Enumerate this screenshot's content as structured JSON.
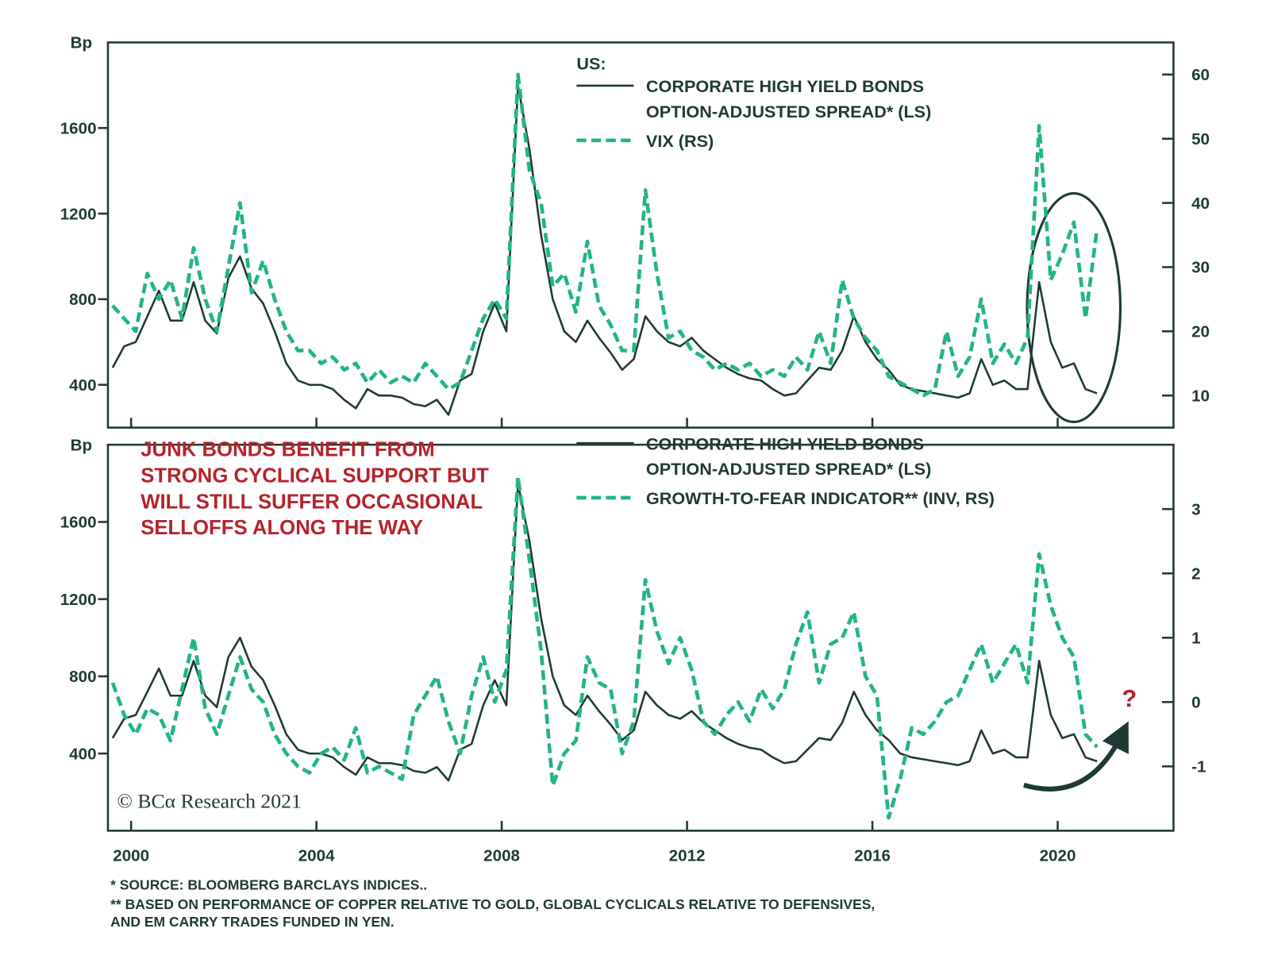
{
  "chart_data": [
    {
      "type": "line",
      "y_label": "Bp",
      "legend_title": "US:",
      "xlim": [
        1999.5,
        2022.5
      ],
      "ylim": [
        200,
        2000
      ],
      "yticks": [
        400,
        800,
        1200,
        1600
      ],
      "y2lim": [
        5,
        65
      ],
      "y2ticks": [
        10,
        20,
        30,
        40,
        50,
        60
      ],
      "x": [
        1999.6,
        1999.85,
        2000.1,
        2000.35,
        2000.6,
        2000.85,
        2001.1,
        2001.35,
        2001.6,
        2001.85,
        2002.1,
        2002.35,
        2002.6,
        2002.85,
        2003.1,
        2003.35,
        2003.6,
        2003.85,
        2004.1,
        2004.35,
        2004.6,
        2004.85,
        2005.1,
        2005.35,
        2005.6,
        2005.85,
        2006.1,
        2006.35,
        2006.6,
        2006.85,
        2007.1,
        2007.35,
        2007.6,
        2007.85,
        2008.1,
        2008.35,
        2008.6,
        2008.85,
        2009.1,
        2009.35,
        2009.6,
        2009.85,
        2010.1,
        2010.35,
        2010.6,
        2010.85,
        2011.1,
        2011.35,
        2011.6,
        2011.85,
        2012.1,
        2012.35,
        2012.6,
        2012.85,
        2013.1,
        2013.35,
        2013.6,
        2013.85,
        2014.1,
        2014.35,
        2014.6,
        2014.85,
        2015.1,
        2015.35,
        2015.6,
        2015.85,
        2016.1,
        2016.35,
        2016.6,
        2016.85,
        2017.1,
        2017.35,
        2017.6,
        2017.85,
        2018.1,
        2018.35,
        2018.6,
        2018.85,
        2019.1,
        2019.35,
        2019.6,
        2019.85,
        2020.1,
        2020.35,
        2020.6,
        2020.85
      ],
      "series": [
        {
          "name": "CORPORATE HIGH YIELD BONDS\nOPTION-ADJUSTED SPREAD* (LS)",
          "color": "#1f3a35",
          "dashed": false,
          "values": [
            480,
            580,
            600,
            720,
            840,
            700,
            700,
            880,
            700,
            640,
            900,
            1000,
            850,
            780,
            650,
            500,
            420,
            400,
            400,
            380,
            330,
            290,
            380,
            350,
            350,
            340,
            310,
            300,
            330,
            260,
            420,
            450,
            650,
            780,
            650,
            1800,
            1500,
            1100,
            800,
            650,
            600,
            700,
            620,
            550,
            470,
            520,
            720,
            650,
            600,
            580,
            620,
            560,
            520,
            480,
            450,
            430,
            420,
            380,
            350,
            360,
            420,
            480,
            470,
            560,
            720,
            600,
            520,
            470,
            400,
            380,
            370,
            360,
            350,
            340,
            360,
            520,
            400,
            420,
            380,
            380,
            880,
            600,
            480,
            500,
            380,
            360
          ]
        },
        {
          "name": "VIX (RS)",
          "color": "#22b488",
          "dashed": true,
          "axis": "y2",
          "values": [
            24,
            22,
            20,
            29,
            25,
            28,
            22,
            33,
            25,
            20,
            30,
            40,
            26,
            31,
            25,
            20,
            17,
            17,
            15,
            16,
            14,
            15,
            12,
            14,
            12,
            13,
            12,
            15,
            13,
            11,
            12,
            17,
            22,
            25,
            22,
            60,
            45,
            40,
            27,
            29,
            23,
            34,
            24,
            21,
            17,
            17,
            42,
            29,
            19,
            20,
            17,
            16,
            14,
            15,
            14,
            15,
            13,
            14,
            13,
            16,
            14,
            20,
            15,
            28,
            22,
            19,
            17,
            13,
            12,
            11,
            10,
            11,
            20,
            13,
            16,
            25,
            15,
            18,
            15,
            19,
            52,
            28,
            32,
            37,
            22,
            36
          ]
        }
      ]
    },
    {
      "type": "line",
      "y_label": "Bp",
      "annotations": [
        "JUNK BONDS BENEFIT FROM\nSTRONG CYCLICAL SUPPORT BUT\nWILL STILL SUFFER OCCASIONAL\nSELLOFFS ALONG THE WAY",
        "?"
      ],
      "xlim": [
        1999.5,
        2022.5
      ],
      "xticks": [
        2000,
        2004,
        2008,
        2012,
        2016,
        2020
      ],
      "ylim": [
        0,
        2000
      ],
      "yticks": [
        400,
        800,
        1200,
        1600
      ],
      "y2lim": [
        -2,
        4
      ],
      "y2ticks": [
        -1,
        0,
        1,
        2,
        3
      ],
      "x": [
        1999.6,
        1999.85,
        2000.1,
        2000.35,
        2000.6,
        2000.85,
        2001.1,
        2001.35,
        2001.6,
        2001.85,
        2002.1,
        2002.35,
        2002.6,
        2002.85,
        2003.1,
        2003.35,
        2003.6,
        2003.85,
        2004.1,
        2004.35,
        2004.6,
        2004.85,
        2005.1,
        2005.35,
        2005.6,
        2005.85,
        2006.1,
        2006.35,
        2006.6,
        2006.85,
        2007.1,
        2007.35,
        2007.6,
        2007.85,
        2008.1,
        2008.35,
        2008.6,
        2008.85,
        2009.1,
        2009.35,
        2009.6,
        2009.85,
        2010.1,
        2010.35,
        2010.6,
        2010.85,
        2011.1,
        2011.35,
        2011.6,
        2011.85,
        2012.1,
        2012.35,
        2012.6,
        2012.85,
        2013.1,
        2013.35,
        2013.6,
        2013.85,
        2014.1,
        2014.35,
        2014.6,
        2014.85,
        2015.1,
        2015.35,
        2015.6,
        2015.85,
        2016.1,
        2016.35,
        2016.6,
        2016.85,
        2017.1,
        2017.35,
        2017.6,
        2017.85,
        2018.1,
        2018.35,
        2018.6,
        2018.85,
        2019.1,
        2019.35,
        2019.6,
        2019.85,
        2020.1,
        2020.35,
        2020.6,
        2020.85
      ],
      "series": [
        {
          "name": "CORPORATE HIGH YIELD BONDS\nOPTION-ADJUSTED SPREAD* (LS)",
          "color": "#1f3a35",
          "dashed": false,
          "values": [
            480,
            580,
            600,
            720,
            840,
            700,
            700,
            880,
            700,
            640,
            900,
            1000,
            850,
            780,
            650,
            500,
            420,
            400,
            400,
            380,
            330,
            290,
            380,
            350,
            350,
            340,
            310,
            300,
            330,
            260,
            420,
            450,
            650,
            780,
            650,
            1800,
            1500,
            1100,
            800,
            650,
            600,
            700,
            620,
            550,
            470,
            520,
            720,
            650,
            600,
            580,
            620,
            560,
            520,
            480,
            450,
            430,
            420,
            380,
            350,
            360,
            420,
            480,
            470,
            560,
            720,
            600,
            520,
            470,
            400,
            380,
            370,
            360,
            350,
            340,
            360,
            520,
            400,
            420,
            380,
            380,
            880,
            600,
            480,
            500,
            380,
            360
          ]
        },
        {
          "name": "GROWTH-TO-FEAR INDICATOR** (INV, RS)",
          "color": "#22b488",
          "dashed": true,
          "axis": "y2",
          "values": [
            0.3,
            -0.2,
            -0.5,
            -0.1,
            -0.2,
            -0.6,
            0.2,
            1.0,
            -0.1,
            -0.5,
            0.1,
            0.7,
            0.2,
            0,
            -0.5,
            -0.8,
            -1.0,
            -1.1,
            -0.8,
            -0.7,
            -0.9,
            -0.4,
            -1.1,
            -1.0,
            -1.1,
            -1.2,
            -0.2,
            0.1,
            0.4,
            -0.3,
            -0.8,
            0.1,
            0.7,
            0,
            0.5,
            3.5,
            2.2,
            0.8,
            -1.3,
            -0.8,
            -0.6,
            0.7,
            0.3,
            0.2,
            -0.8,
            -0.3,
            1.9,
            1.1,
            0.6,
            1.0,
            0.5,
            -0.3,
            -0.5,
            -0.2,
            0,
            -0.3,
            0.2,
            -0.1,
            0.2,
            0.9,
            1.4,
            0.3,
            0.9,
            1.0,
            1.4,
            0.4,
            0.1,
            -1.8,
            -1.2,
            -0.4,
            -0.5,
            -0.3,
            0,
            0.1,
            0.5,
            0.9,
            0.3,
            0.6,
            0.9,
            0.3,
            2.3,
            1.5,
            1.0,
            0.7,
            -0.5,
            -0.7
          ]
        }
      ]
    }
  ],
  "credit": "© BCα Research 2021",
  "footnotes": [
    "*  SOURCE: BLOOMBERG BARCLAYS INDICES..",
    "** BASED ON PERFORMANCE OF COPPER RELATIVE TO GOLD, GLOBAL CYCLICALS RELATIVE TO DEFENSIVES,\nAND EM CARRY TRADES FUNDED IN YEN."
  ]
}
